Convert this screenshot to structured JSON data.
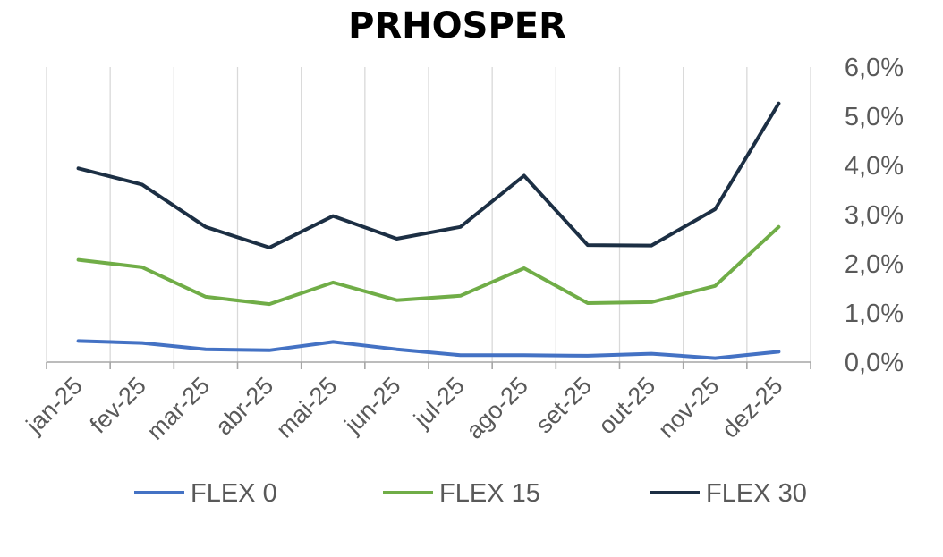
{
  "chart_data": {
    "type": "line",
    "title": "PRHOSPER",
    "xlabel": "",
    "ylabel": "",
    "categories": [
      "jan-25",
      "fev-25",
      "mar-25",
      "abr-25",
      "mai-25",
      "jun-25",
      "jul-25",
      "ago-25",
      "set-25",
      "out-25",
      "nov-25",
      "dez-25"
    ],
    "ylim": [
      0,
      6
    ],
    "yticks": [
      0,
      1,
      2,
      3,
      4,
      5,
      6
    ],
    "ytick_labels": [
      "0,0%",
      "1,0%",
      "2,0%",
      "3,0%",
      "4,0%",
      "5,0%",
      "6,0%"
    ],
    "y_axis_side": "right",
    "grid": "vertical",
    "legend_position": "bottom",
    "series": [
      {
        "name": "FLEX 0",
        "color": "#4472C4",
        "values": [
          0.43,
          0.39,
          0.26,
          0.24,
          0.41,
          0.26,
          0.14,
          0.14,
          0.13,
          0.17,
          0.08,
          0.21
        ]
      },
      {
        "name": "FLEX 15",
        "color": "#70AD47",
        "values": [
          2.08,
          1.93,
          1.33,
          1.18,
          1.62,
          1.26,
          1.35,
          1.91,
          1.2,
          1.22,
          1.55,
          2.75
        ]
      },
      {
        "name": "FLEX 30",
        "color": "#1C2F44",
        "values": [
          3.94,
          3.61,
          2.75,
          2.33,
          2.97,
          2.51,
          2.75,
          3.79,
          2.38,
          2.37,
          3.11,
          5.26
        ]
      }
    ]
  }
}
